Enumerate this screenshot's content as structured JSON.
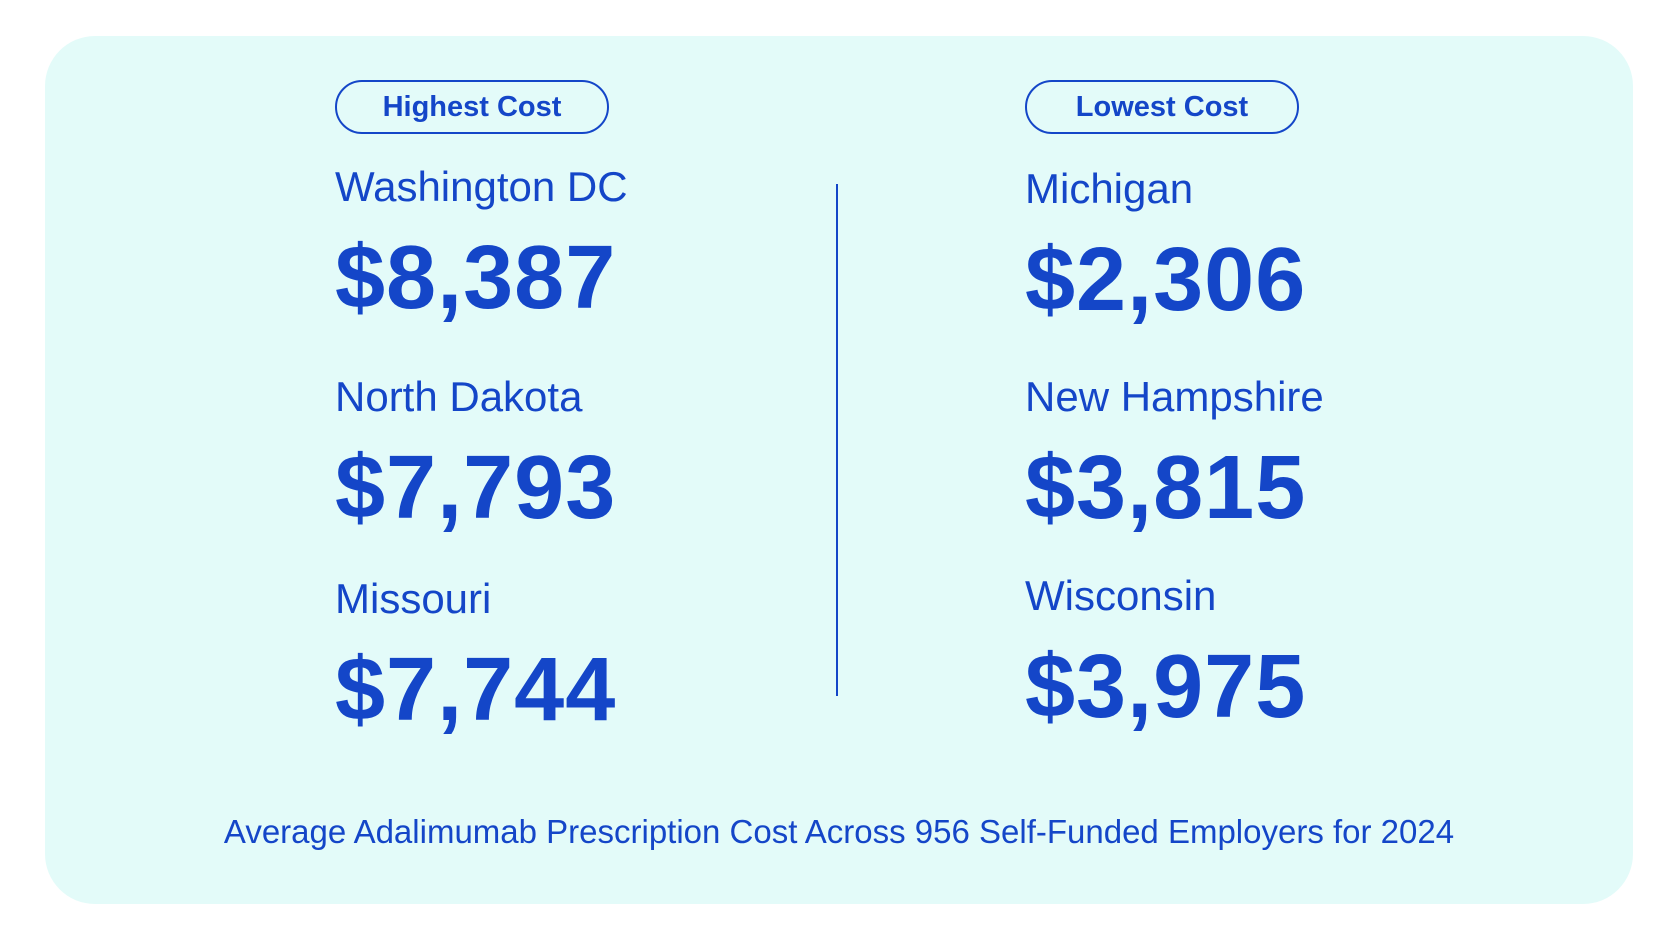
{
  "left": {
    "badge": "Highest Cost",
    "entries": [
      {
        "state": "Washington DC",
        "cost": "$8,387"
      },
      {
        "state": "North Dakota",
        "cost": "$7,793"
      },
      {
        "state": "Missouri",
        "cost": "$7,744"
      }
    ]
  },
  "right": {
    "badge": "Lowest Cost",
    "entries": [
      {
        "state": "Michigan",
        "cost": "$2,306"
      },
      {
        "state": "New Hampshire",
        "cost": "$3,815"
      },
      {
        "state": "Wisconsin",
        "cost": "$3,975"
      }
    ]
  },
  "footnote": "Average Adalimumab Prescription Cost Across 956 Self-Funded Employers for 2024",
  "colors": {
    "accent": "#1446c8",
    "card_background": "#e3fbf9"
  }
}
